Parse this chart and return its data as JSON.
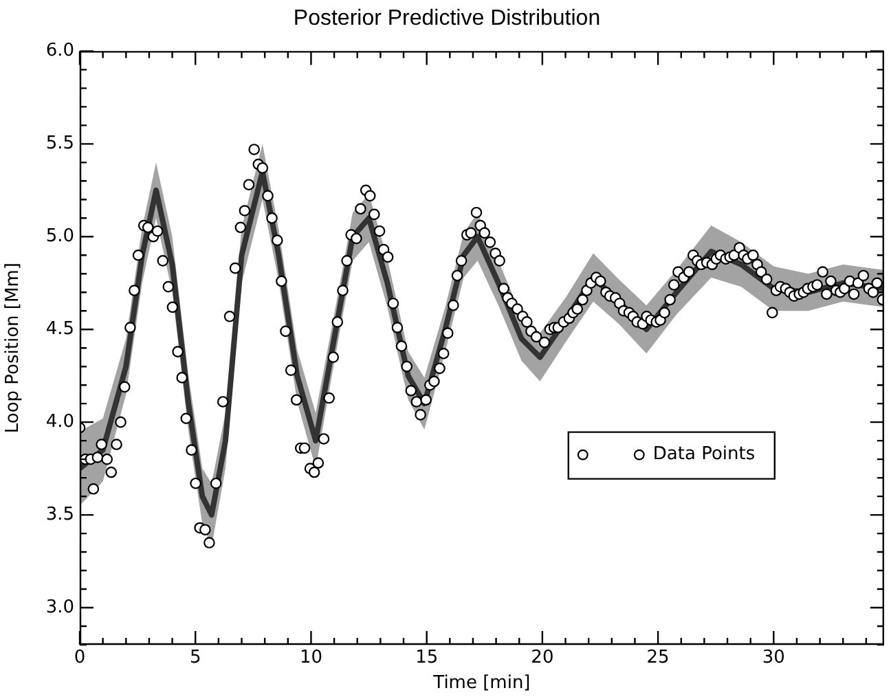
{
  "chart_data": {
    "type": "scatter",
    "title": "Posterior Predictive Distribution",
    "xlabel": "Time [min]",
    "ylabel": "Loop Position [Mm]",
    "xlim": [
      0,
      34.77
    ],
    "ylim": [
      2.8,
      6.0
    ],
    "xticks": [
      0,
      {
        "value": 1,
        "label": null
      },
      {
        "value": 2,
        "label": null
      },
      {
        "value": 3,
        "label": null
      },
      {
        "value": 4,
        "label": null
      },
      5,
      {
        "value": 6,
        "label": null
      },
      {
        "value": 7,
        "label": null
      },
      {
        "value": 8,
        "label": null
      },
      {
        "value": 9,
        "label": null
      },
      10,
      {
        "value": 11,
        "label": null
      },
      {
        "value": 12,
        "label": null
      },
      {
        "value": 13,
        "label": null
      },
      {
        "value": 14,
        "label": null
      },
      15,
      {
        "value": 16,
        "label": null
      },
      {
        "value": 17,
        "label": null
      },
      {
        "value": 18,
        "label": null
      },
      {
        "value": 19,
        "label": null
      },
      20,
      {
        "value": 21,
        "label": null
      },
      {
        "value": 22,
        "label": null
      },
      {
        "value": 23,
        "label": null
      },
      {
        "value": 24,
        "label": null
      },
      25,
      {
        "value": 26,
        "label": null
      },
      {
        "value": 27,
        "label": null
      },
      {
        "value": 28,
        "label": null
      },
      {
        "value": 29,
        "label": null
      },
      30,
      {
        "value": 31,
        "label": null
      },
      {
        "value": 32,
        "label": null
      },
      {
        "value": 33,
        "label": null
      },
      {
        "value": 34,
        "label": null
      }
    ],
    "yticks": [
      {
        "value": 2.8,
        "label": null
      },
      {
        "value": 2.9,
        "label": null
      },
      {
        "value": 3.0,
        "label": "3.0"
      },
      {
        "value": 3.1,
        "label": null
      },
      {
        "value": 3.2,
        "label": null
      },
      {
        "value": 3.3,
        "label": null
      },
      {
        "value": 3.4,
        "label": null
      },
      3.5,
      {
        "value": 3.6,
        "label": null
      },
      {
        "value": 3.7,
        "label": null
      },
      {
        "value": 3.8,
        "label": null
      },
      {
        "value": 3.9,
        "label": null
      },
      {
        "value": 4.0,
        "label": "4.0"
      },
      {
        "value": 4.1,
        "label": null
      },
      {
        "value": 4.2,
        "label": null
      },
      {
        "value": 4.3,
        "label": null
      },
      {
        "value": 4.4,
        "label": null
      },
      4.5,
      {
        "value": 4.6,
        "label": null
      },
      {
        "value": 4.7,
        "label": null
      },
      {
        "value": 4.8,
        "label": null
      },
      {
        "value": 4.9,
        "label": null
      },
      {
        "value": 5.0,
        "label": "5.0"
      },
      {
        "value": 5.1,
        "label": null
      },
      {
        "value": 5.2,
        "label": null
      },
      {
        "value": 5.3,
        "label": null
      },
      {
        "value": 5.4,
        "label": null
      },
      5.5,
      {
        "value": 5.6,
        "label": null
      },
      {
        "value": 5.7,
        "label": null
      },
      {
        "value": 5.8,
        "label": null
      },
      {
        "value": 5.9,
        "label": null
      },
      {
        "value": 6.0,
        "label": "6.0"
      }
    ],
    "grid": false,
    "legend": "center right",
    "marker": "circle",
    "series": [
      {
        "type": "line",
        "color": "#333333",
        "marker": "none",
        "x": [
          0,
          1,
          2,
          2.7,
          3.3,
          4.0,
          4.7,
          5.3,
          5.7,
          6.3,
          7.0,
          7.9,
          8.6,
          9.4,
          10.2,
          11.0,
          11.8,
          12.5,
          13.3,
          14.2,
          14.9,
          15.8,
          16.6,
          17.2,
          18.1,
          19.1,
          19.9,
          21.0,
          22.2,
          23.3,
          24.5,
          25.8,
          27.3,
          28.6,
          30.0,
          31.5,
          33.0,
          34.77
        ],
        "values": [
          3.75,
          3.85,
          4.3,
          4.9,
          5.25,
          4.85,
          4.1,
          3.6,
          3.5,
          3.9,
          4.9,
          5.35,
          4.9,
          4.25,
          3.9,
          4.45,
          5.0,
          5.1,
          4.75,
          4.25,
          4.1,
          4.5,
          4.9,
          5.0,
          4.75,
          4.45,
          4.35,
          4.55,
          4.78,
          4.65,
          4.5,
          4.7,
          4.92,
          4.85,
          4.72,
          4.7,
          4.75,
          4.72
        ],
        "lower": [
          3.55,
          3.68,
          4.15,
          4.75,
          5.1,
          4.7,
          3.95,
          3.45,
          3.33,
          3.75,
          4.75,
          5.2,
          4.76,
          4.11,
          3.75,
          4.32,
          4.87,
          4.97,
          4.62,
          4.12,
          3.96,
          4.38,
          4.78,
          4.87,
          4.63,
          4.33,
          4.22,
          4.43,
          4.65,
          4.53,
          4.37,
          4.58,
          4.78,
          4.73,
          4.6,
          4.6,
          4.65,
          4.62
        ],
        "upper": [
          3.95,
          4.02,
          4.45,
          5.05,
          5.4,
          5.0,
          4.25,
          3.75,
          3.67,
          4.05,
          5.05,
          5.5,
          5.04,
          4.39,
          4.05,
          4.58,
          5.13,
          5.23,
          4.88,
          4.38,
          4.24,
          4.62,
          5.02,
          5.13,
          4.87,
          4.57,
          4.48,
          4.67,
          4.91,
          4.77,
          4.63,
          4.82,
          5.06,
          4.97,
          4.84,
          4.8,
          4.85,
          4.82
        ]
      },
      {
        "name": "Data Points",
        "color": "#ffffff",
        "x": [
          0,
          0.24,
          0.47,
          0.59,
          0.77,
          0.94,
          1.18,
          1.36,
          1.59,
          1.77,
          1.94,
          2.18,
          2.36,
          2.53,
          2.77,
          2.95,
          3.18,
          3.36,
          3.59,
          3.83,
          4.01,
          4.24,
          4.42,
          4.6,
          4.83,
          5.01,
          5.19,
          5.42,
          5.6,
          5.89,
          6.19,
          6.48,
          6.72,
          6.95,
          7.13,
          7.31,
          7.54,
          7.72,
          7.9,
          8.13,
          8.31,
          8.54,
          8.72,
          8.9,
          9.13,
          9.37,
          9.55,
          9.72,
          9.96,
          10.14,
          10.31,
          10.55,
          10.78,
          10.96,
          11.14,
          11.37,
          11.55,
          11.73,
          11.96,
          12.14,
          12.37,
          12.55,
          12.73,
          12.96,
          13.14,
          13.32,
          13.55,
          13.73,
          13.91,
          14.14,
          14.32,
          14.56,
          14.73,
          14.97,
          15.14,
          15.32,
          15.56,
          15.73,
          15.91,
          16.15,
          16.32,
          16.5,
          16.74,
          16.91,
          17.15,
          17.32,
          17.5,
          17.74,
          17.97,
          18.15,
          18.33,
          18.5,
          18.68,
          18.92,
          19.15,
          19.33,
          19.51,
          19.74,
          20.09,
          20.33,
          20.51,
          20.68,
          20.92,
          21.16,
          21.33,
          21.51,
          21.74,
          21.92,
          22.1,
          22.33,
          22.51,
          22.75,
          22.92,
          23.16,
          23.34,
          23.51,
          23.75,
          23.92,
          24.1,
          24.34,
          24.51,
          24.69,
          24.93,
          25.1,
          25.28,
          25.52,
          25.69,
          25.87,
          26.11,
          26.34,
          26.52,
          26.7,
          26.87,
          27.11,
          27.34,
          27.52,
          27.7,
          27.93,
          28.11,
          28.29,
          28.52,
          28.7,
          28.87,
          29.11,
          29.29,
          29.46,
          29.7,
          29.94,
          30.11,
          30.29,
          30.52,
          30.7,
          30.88,
          31.11,
          31.29,
          31.47,
          31.7,
          31.88,
          32.12,
          32.29,
          32.47,
          32.7,
          32.88,
          33.06,
          33.29,
          33.47,
          33.65,
          33.88,
          34.12,
          34.3,
          34.47,
          34.71
        ],
        "values": [
          3.97,
          3.8,
          3.8,
          3.64,
          3.81,
          3.88,
          3.8,
          3.73,
          3.88,
          4.0,
          4.19,
          4.51,
          4.71,
          4.9,
          5.06,
          5.05,
          5.0,
          5.03,
          4.87,
          4.73,
          4.62,
          4.38,
          4.24,
          4.02,
          3.85,
          3.67,
          3.43,
          3.42,
          3.35,
          3.67,
          4.11,
          4.57,
          4.83,
          5.05,
          5.14,
          5.28,
          5.47,
          5.39,
          5.37,
          5.22,
          5.1,
          4.98,
          4.76,
          4.49,
          4.28,
          4.12,
          3.86,
          3.86,
          3.75,
          3.73,
          3.78,
          3.91,
          4.13,
          4.35,
          4.54,
          4.71,
          4.87,
          5.01,
          4.99,
          5.15,
          5.25,
          5.22,
          5.12,
          5.03,
          4.93,
          4.89,
          4.64,
          4.51,
          4.41,
          4.3,
          4.17,
          4.11,
          4.04,
          4.12,
          4.2,
          4.22,
          4.29,
          4.37,
          4.48,
          4.63,
          4.79,
          4.87,
          5.01,
          5.02,
          5.13,
          5.06,
          5.02,
          4.97,
          4.91,
          4.87,
          4.72,
          4.67,
          4.64,
          4.61,
          4.57,
          4.54,
          4.49,
          4.46,
          4.43,
          4.5,
          4.51,
          4.51,
          4.54,
          4.56,
          4.59,
          4.61,
          4.66,
          4.71,
          4.75,
          4.78,
          4.76,
          4.7,
          4.68,
          4.67,
          4.64,
          4.6,
          4.59,
          4.57,
          4.54,
          4.53,
          4.57,
          4.55,
          4.54,
          4.55,
          4.59,
          4.66,
          4.74,
          4.81,
          4.78,
          4.81,
          4.9,
          4.87,
          4.85,
          4.86,
          4.85,
          4.88,
          4.9,
          4.88,
          4.89,
          4.9,
          4.94,
          4.9,
          4.88,
          4.9,
          4.85,
          4.81,
          4.77,
          4.59,
          4.71,
          4.73,
          4.72,
          4.7,
          4.68,
          4.69,
          4.7,
          4.72,
          4.73,
          4.74,
          4.81,
          4.69,
          4.76,
          4.71,
          4.7,
          4.72,
          4.76,
          4.69,
          4.75,
          4.79,
          4.72,
          4.7,
          4.75,
          4.66
        ]
      }
    ]
  }
}
